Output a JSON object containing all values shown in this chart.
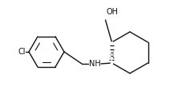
{
  "background_color": "#ffffff",
  "line_color": "#111111",
  "lw": 1.0,
  "font_size": 7.0,
  "oh_label": "OH",
  "nh_label": "NH",
  "cl_label": "Cl",
  "figsize": [
    2.27,
    1.38
  ],
  "dpi": 100
}
